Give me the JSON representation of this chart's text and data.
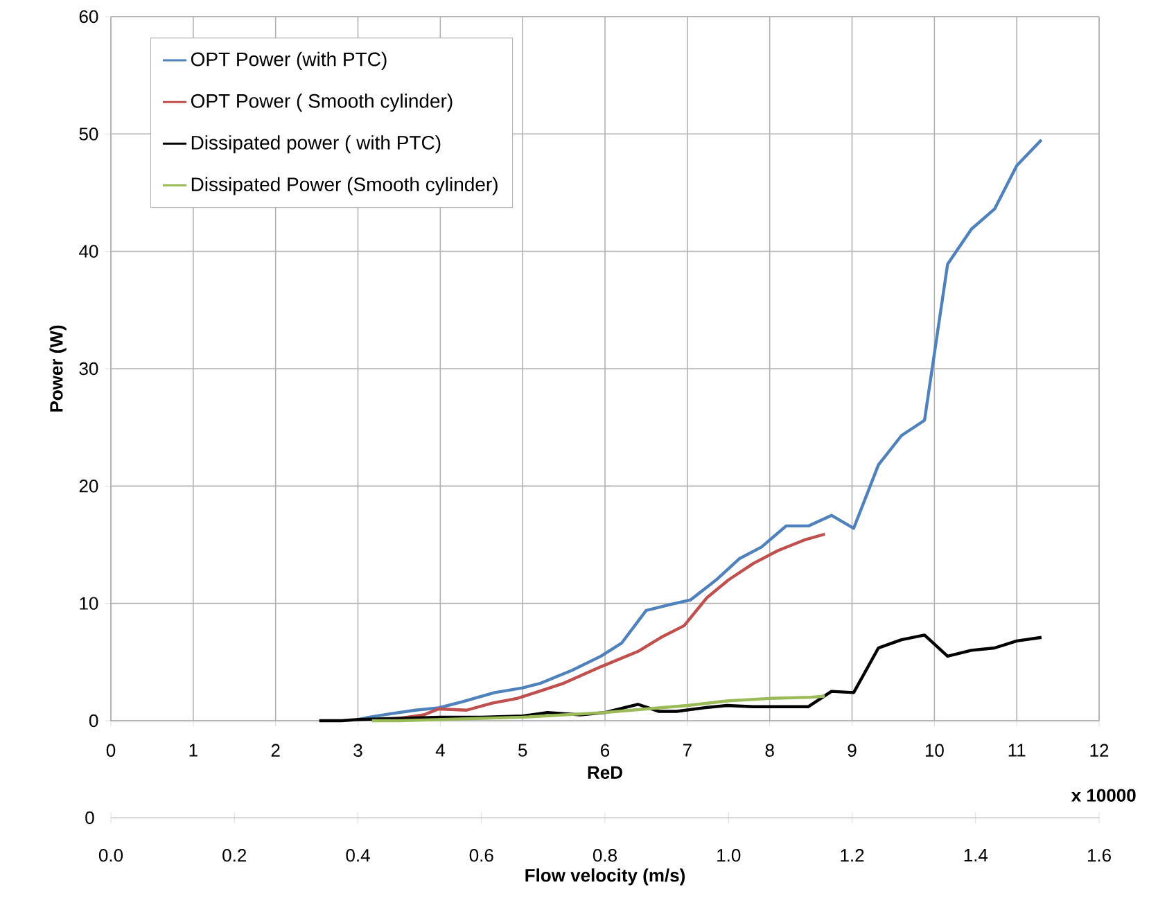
{
  "chart_data": {
    "type": "line",
    "xlabel": "ReD",
    "ylabel": "Power (W)",
    "x2label": "Flow velocity (m/s)",
    "xlim": [
      0,
      12
    ],
    "xticks": [
      0,
      1,
      2,
      3,
      4,
      5,
      6,
      7,
      8,
      9,
      10,
      11,
      12
    ],
    "ylim": [
      0,
      60
    ],
    "yticks": [
      0,
      10,
      20,
      30,
      40,
      50,
      60
    ],
    "x2lim": [
      0,
      1.6
    ],
    "x2ticks": [
      {
        "value": 0,
        "label": "0.0"
      },
      0.2,
      0.4,
      0.6,
      0.8,
      {
        "value": 1.0,
        "label": "1.0"
      },
      1.2,
      1.4,
      1.6
    ],
    "grid": true,
    "legend": "top left",
    "line_style": "solid",
    "annotations": [
      "x 10000",
      "0"
    ],
    "series": [
      {
        "name": "OPT Power (with PTC)",
        "color": "#4f81bd",
        "x": [
          3.0,
          3.14,
          3.4,
          3.7,
          3.98,
          4.26,
          4.66,
          5.0,
          5.22,
          5.6,
          5.95,
          6.2,
          6.5,
          6.79,
          7.04,
          7.35,
          7.63,
          7.9,
          8.2,
          8.47,
          8.75,
          9.02,
          9.32,
          9.6,
          9.88,
          10.16,
          10.45,
          10.73,
          11.0,
          11.3
        ],
        "values": [
          0.1,
          0.3,
          0.6,
          0.9,
          1.1,
          1.6,
          2.4,
          2.8,
          3.2,
          4.3,
          5.5,
          6.6,
          9.4,
          9.9,
          10.3,
          12.0,
          13.8,
          14.8,
          16.6,
          16.6,
          17.5,
          16.4,
          21.8,
          24.3,
          25.6,
          38.9,
          41.9,
          43.6,
          47.3,
          49.5
        ]
      },
      {
        "name": "OPT Power ( Smooth cylinder)",
        "color": "#c0504d",
        "x": [
          3.17,
          3.5,
          3.8,
          3.98,
          4.32,
          4.63,
          4.93,
          5.2,
          5.5,
          5.95,
          6.4,
          6.68,
          6.96,
          7.24,
          7.5,
          7.8,
          8.1,
          8.42,
          8.67
        ],
        "values": [
          0.0,
          0.2,
          0.5,
          1.0,
          0.9,
          1.5,
          1.9,
          2.5,
          3.2,
          4.6,
          5.9,
          7.1,
          8.1,
          10.5,
          12.0,
          13.4,
          14.5,
          15.4,
          15.9
        ]
      },
      {
        "name": "Dissipated power ( with PTC)",
        "color": "#000000",
        "x": [
          2.53,
          2.8,
          3.0,
          3.5,
          4.0,
          4.5,
          5.0,
          5.3,
          5.7,
          6.0,
          6.4,
          6.65,
          6.87,
          7.2,
          7.48,
          7.8,
          8.1,
          8.47,
          8.75,
          9.02,
          9.32,
          9.6,
          9.88,
          10.16,
          10.45,
          10.73,
          11.0,
          11.3
        ],
        "values": [
          0.0,
          0.0,
          0.1,
          0.2,
          0.3,
          0.3,
          0.4,
          0.7,
          0.5,
          0.7,
          1.4,
          0.8,
          0.8,
          1.1,
          1.3,
          1.2,
          1.2,
          1.2,
          2.5,
          2.4,
          6.2,
          6.9,
          7.3,
          5.5,
          6.0,
          6.2,
          6.8,
          7.1
        ]
      },
      {
        "name": "Dissipated Power (Smooth cylinder)",
        "color": "#9bbb59",
        "x": [
          3.17,
          3.5,
          4.0,
          4.5,
          5.0,
          5.5,
          6.0,
          6.5,
          7.0,
          7.5,
          8.0,
          8.5,
          8.67
        ],
        "values": [
          0.0,
          0.0,
          0.1,
          0.2,
          0.3,
          0.5,
          0.7,
          1.0,
          1.3,
          1.7,
          1.9,
          2.0,
          2.1
        ]
      }
    ]
  }
}
